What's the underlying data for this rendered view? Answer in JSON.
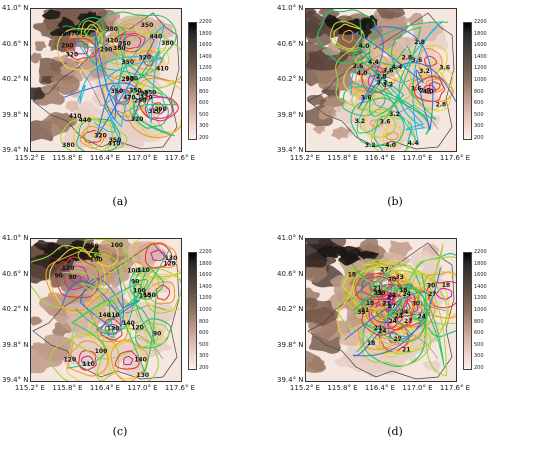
{
  "lat_ticks": [
    "41.0° N",
    "40.6° N",
    "40.2° N",
    "39.8° N",
    "39.4° N"
  ],
  "lon_ticks": [
    "115.2° E",
    "115.8° E",
    "116.4° E",
    "117.0° E",
    "117.6° E"
  ],
  "colorbar_ticks": [
    "2200",
    "1800",
    "1600",
    "1400",
    "1200",
    "1000",
    "800",
    "600",
    "500",
    "300",
    "200"
  ],
  "panels": [
    {
      "caption": "(a)",
      "contour_labels": [
        "290",
        "350",
        "320",
        "350",
        "410",
        "470",
        "440",
        "410",
        "380",
        "350",
        "320",
        "290",
        "350",
        "380",
        "410",
        "380",
        "350",
        "320",
        "470",
        "440",
        "320",
        "290",
        "350",
        "380",
        "410",
        "320",
        "290",
        "350",
        "380",
        "290",
        "320",
        "350",
        "290"
      ]
    },
    {
      "caption": "(b)",
      "contour_labels": [
        "3.6",
        "3.2",
        "4.4",
        "4.0",
        "3.6",
        "3.2",
        "2.8",
        "3.6",
        "4.0",
        "3.2",
        "2.8",
        "3.6",
        "4.4",
        "2.8",
        "3.2",
        "3.6",
        "4.0",
        "2.8",
        "3.2",
        "3.6",
        "4.0",
        "3.2",
        "2.8",
        "3.6",
        "4.4",
        "3.2",
        "3.6"
      ]
    },
    {
      "caption": "(c)",
      "contour_labels": [
        "140",
        "120",
        "100",
        "90",
        "150",
        "110",
        "100",
        "120",
        "130",
        "90",
        "100",
        "110",
        "120",
        "150",
        "130",
        "100",
        "90",
        "140",
        "120",
        "110",
        "130",
        "90",
        "100",
        "140",
        "150"
      ]
    },
    {
      "caption": "(d)",
      "contour_labels": [
        "18",
        "21",
        "24",
        "27",
        "18",
        "21",
        "24",
        "30",
        "27",
        "21",
        "33",
        "24",
        "18",
        "27",
        "30",
        "21",
        "24",
        "33",
        "27",
        "18",
        "21",
        "24",
        "30",
        "27",
        "24",
        "21",
        "18",
        "27",
        "30",
        "33"
      ]
    }
  ]
}
